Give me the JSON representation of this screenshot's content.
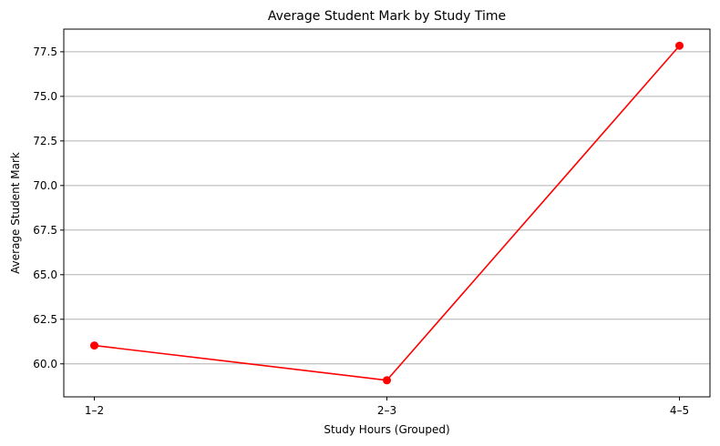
{
  "chart_data": {
    "type": "line",
    "title": "Average Student Mark by Study Time",
    "xlabel": "Study Hours (Grouped)",
    "ylabel": "Average Student Mark",
    "categories": [
      "1–2",
      "2–3",
      "4–5"
    ],
    "series": [
      {
        "values": [
          61.03,
          59.08,
          77.84
        ],
        "color": "#ff0000",
        "marker": "circle"
      }
    ],
    "ylim": [
      58.15,
      78.77
    ],
    "yticks": [
      60.0,
      62.5,
      65.0,
      67.5,
      70.0,
      72.5,
      75.0,
      77.5
    ],
    "ytick_labels": [
      "60.0",
      "62.5",
      "65.0",
      "67.5",
      "70.0",
      "72.5",
      "75.0",
      "77.5"
    ],
    "grid": {
      "y": true,
      "x": false,
      "color": "#b0b0b0"
    },
    "legend": "none"
  }
}
